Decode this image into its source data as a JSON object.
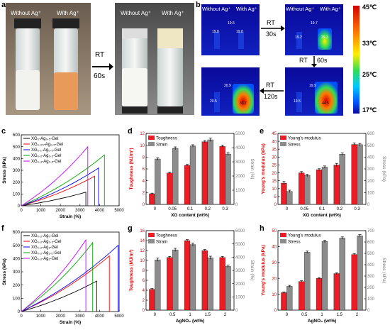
{
  "panels": {
    "a": {
      "label": "a",
      "vial_labels": [
        "Without Ag⁺",
        "With Ag⁺",
        "Without Ag⁺",
        "With Ag⁺"
      ],
      "arrow_text": [
        "RT",
        "60s"
      ]
    },
    "b": {
      "label": "b",
      "tiles": [
        {
          "labels": [
            "Without Ag⁺",
            "With Ag⁺"
          ],
          "readouts": [
            "19.5",
            "19.8",
            "19.8"
          ]
        },
        {
          "labels": [
            "Without Ag⁺",
            "With Ag⁺"
          ],
          "readouts": [
            "19.7",
            "19.2",
            "29.3"
          ]
        },
        {
          "labels": [],
          "readouts": [
            "20.5",
            "20.9",
            "33.7"
          ]
        },
        {
          "labels": [],
          "readouts": [
            "19.9",
            "19.5",
            "44.5"
          ]
        }
      ],
      "arrows": [
        [
          "RT",
          "30s"
        ],
        [
          "RT",
          "60s"
        ],
        [
          "RT",
          "120s"
        ]
      ],
      "colorbar_ticks": [
        "45℃",
        "33℃",
        "25℃",
        "17℃"
      ],
      "colors": [
        "#d40000",
        "#ff7a00",
        "#ffee00",
        "#33dd55",
        "#00c8ff",
        "#0050ff",
        "#0a0a9a"
      ]
    },
    "c": "c",
    "d": "d",
    "e": "e",
    "f": "f",
    "g": "g",
    "h": "h"
  },
  "stress_strain_c": {
    "ylabel": "Stress (kPa)",
    "xlabel": "Strain (%)",
    "yticks": [
      "0",
      "100",
      "200",
      "300",
      "400",
      "500",
      "600"
    ],
    "xticks": [
      "0",
      "1000",
      "2000",
      "3000",
      "4000",
      "5000"
    ],
    "legend": [
      "XG₀-Ag₀.₅-Gel",
      "XG₀.₀₅-Ag₀.₅-Gel",
      "XG₀.₁-Ag₀.₅-Gel",
      "XG₀.₂-Ag₀.₅-Gel",
      "XG₀.₃-Ag₀.₅-Gel"
    ]
  },
  "stress_strain_f": {
    "ylabel": "Stress (kPa)",
    "xlabel": "Strain (%)",
    "yticks": [
      "0",
      "100",
      "200",
      "300",
      "400",
      "500",
      "600"
    ],
    "xticks": [
      "0",
      "1000",
      "2000",
      "3000",
      "4000",
      "5000"
    ],
    "legend": [
      "XG₀.₂-Ag₀-Gel",
      "XG₀.₂-Ag₀.₅-Gel",
      "XG₀.₂-Ag₁-Gel",
      "XG₀.₂-Ag₁.₅-Gel",
      "XG₀.₂-Ag₂-Gel"
    ]
  },
  "chart_data": [
    {
      "type": "line",
      "panel": "c",
      "xlabel": "Strain (%)",
      "ylabel": "Stress (kPa)",
      "xlim": [
        0,
        5000
      ],
      "ylim": [
        0,
        600
      ],
      "series": [
        {
          "name": "XG₀-Ag₀.₅-Gel",
          "color": "#000000",
          "x": [
            0,
            3300,
            3300
          ],
          "y": [
            0,
            115,
            0
          ]
        },
        {
          "name": "XG₀.₀₅-Ag₀.₅-Gel",
          "color": "#ff0000",
          "x": [
            0,
            3750,
            3750
          ],
          "y": [
            0,
            250,
            0
          ]
        },
        {
          "name": "XG₀.₁-Ag₀.₅-Gel",
          "color": "#0000ff",
          "x": [
            0,
            3950,
            3950
          ],
          "y": [
            0,
            320,
            0
          ]
        },
        {
          "name": "XG₀.₂-Ag₀.₅-Gel",
          "color": "#00aa00",
          "x": [
            0,
            4250,
            4250
          ],
          "y": [
            0,
            430,
            0
          ]
        },
        {
          "name": "XG₀.₃-Ag₀.₅-Gel",
          "color": "#cc00ff",
          "x": [
            0,
            3400,
            3400
          ],
          "y": [
            0,
            500,
            0
          ]
        }
      ]
    },
    {
      "type": "bar",
      "panel": "d",
      "xlabel": "XG content (wt%)",
      "ylabel": "Toughness (MJ/m³)",
      "ylabel2": "Strain (%)",
      "categories": [
        "0",
        "0.05",
        "0.1",
        "0.2",
        "0.3"
      ],
      "ylim": [
        0,
        12
      ],
      "y2lim": [
        0,
        5000
      ],
      "yticks": [
        "0",
        "2",
        "4",
        "6",
        "8",
        "10",
        "12"
      ],
      "y2ticks": [
        "0",
        "1000",
        "2000",
        "3000",
        "4000",
        "5000"
      ],
      "series": [
        {
          "name": "Toughness",
          "axis": "left",
          "color": "#ee1c25",
          "values": [
            1.8,
            5.3,
            6.6,
            10.6,
            9.8
          ],
          "errors": [
            0.1,
            0.15,
            0.15,
            0.2,
            0.2
          ]
        },
        {
          "name": "Strain",
          "axis": "right",
          "color": "#8c8c8c",
          "values": [
            3200,
            3950,
            4120,
            4550,
            3550
          ],
          "errors": [
            80,
            100,
            80,
            120,
            100
          ]
        }
      ]
    },
    {
      "type": "bar",
      "panel": "e",
      "xlabel": "XG content (wt%)",
      "ylabel": "Young's modulus (kPa)",
      "ylabel2": "Stress (kPa)",
      "categories": [
        "0",
        "0.05",
        "0.1",
        "0.2",
        "0.3"
      ],
      "ylim": [
        0,
        45
      ],
      "y2lim": [
        0,
        600
      ],
      "yticks": [
        "0",
        "5",
        "10",
        "15",
        "20",
        "25",
        "30",
        "35",
        "40",
        "45"
      ],
      "y2ticks": [
        "0",
        "100",
        "200",
        "300",
        "400",
        "500",
        "600"
      ],
      "series": [
        {
          "name": "Young's modulus",
          "axis": "left",
          "color": "#ee1c25",
          "values": [
            13.5,
            20,
            22,
            25,
            38
          ],
          "errors": [
            1,
            0.8,
            0.6,
            1,
            1
          ]
        },
        {
          "name": "Stress",
          "axis": "right",
          "color": "#8c8c8c",
          "values": [
            110,
            245,
            315,
            425,
            505
          ],
          "errors": [
            10,
            10,
            10,
            10,
            10
          ]
        }
      ]
    },
    {
      "type": "line",
      "panel": "f",
      "xlabel": "Strain (%)",
      "ylabel": "Stress (kPa)",
      "xlim": [
        0,
        5000
      ],
      "ylim": [
        0,
        600
      ],
      "series": [
        {
          "name": "XG₀.₂-Ag₀-Gel",
          "color": "#000000",
          "x": [
            0,
            3850,
            3850
          ],
          "y": [
            0,
            230,
            0
          ]
        },
        {
          "name": "XG₀.₂-Ag₀.₅-Gel",
          "color": "#ff0000",
          "x": [
            0,
            4500,
            4500
          ],
          "y": [
            0,
            420,
            0
          ]
        },
        {
          "name": "XG₀.₂-Ag₁-Gel",
          "color": "#0000ff",
          "x": [
            0,
            4950,
            4950
          ],
          "y": [
            0,
            500,
            0
          ]
        },
        {
          "name": "XG₀.₂-Ag₁.₅-Gel",
          "color": "#00aa00",
          "x": [
            0,
            3650,
            3650
          ],
          "y": [
            0,
            520,
            0
          ]
        },
        {
          "name": "XG₀.₂-Ag₂-Gel",
          "color": "#cc00ff",
          "x": [
            0,
            3300,
            3300
          ],
          "y": [
            0,
            540,
            0
          ]
        }
      ]
    },
    {
      "type": "bar",
      "panel": "g",
      "xlabel": "AgNO₃ (wt%)",
      "ylabel": "Toughness (MJ/m³)",
      "ylabel2": "Strain (%)",
      "categories": [
        "0",
        "0.5",
        "1",
        "1.5",
        "2"
      ],
      "ylim": [
        0,
        16
      ],
      "y2lim": [
        0,
        6000
      ],
      "yticks": [
        "0",
        "2",
        "4",
        "6",
        "8",
        "10",
        "12",
        "14",
        "16"
      ],
      "y2ticks": [
        "0",
        "1000",
        "2000",
        "3000",
        "4000",
        "5000",
        "6000"
      ],
      "series": [
        {
          "name": "Toughness",
          "axis": "left",
          "color": "#ee1c25",
          "values": [
            4.2,
            10.6,
            14.0,
            12.0,
            10.6
          ],
          "errors": [
            0.15,
            0.2,
            0.2,
            0.2,
            0.2
          ]
        },
        {
          "name": "Strain",
          "axis": "right",
          "color": "#8c8c8c",
          "values": [
            3800,
            4550,
            4950,
            3950,
            3300
          ],
          "errors": [
            120,
            120,
            120,
            120,
            100
          ]
        }
      ]
    },
    {
      "type": "bar",
      "panel": "h",
      "xlabel": "AgNO₃ (wt%)",
      "ylabel": "Young's modulus (kPa)",
      "ylabel2": "Stress (kPa)",
      "categories": [
        "0",
        "0.5",
        "1",
        "1.5",
        "2"
      ],
      "ylim": [
        0,
        50
      ],
      "y2lim": [
        0,
        700
      ],
      "yticks": [
        "0",
        "10",
        "20",
        "30",
        "40",
        "50"
      ],
      "y2ticks": [
        "0",
        "100",
        "200",
        "300",
        "400",
        "500",
        "600",
        "700"
      ],
      "series": [
        {
          "name": "Young's modulus",
          "axis": "left",
          "color": "#ee1c25",
          "values": [
            11,
            18,
            20,
            23,
            35
          ],
          "errors": [
            0.5,
            0.5,
            0.5,
            0.5,
            0.5
          ]
        },
        {
          "name": "Stress",
          "axis": "right",
          "color": "#8c8c8c",
          "values": [
            210,
            510,
            605,
            635,
            655
          ],
          "errors": [
            8,
            10,
            10,
            10,
            10
          ]
        }
      ]
    }
  ]
}
